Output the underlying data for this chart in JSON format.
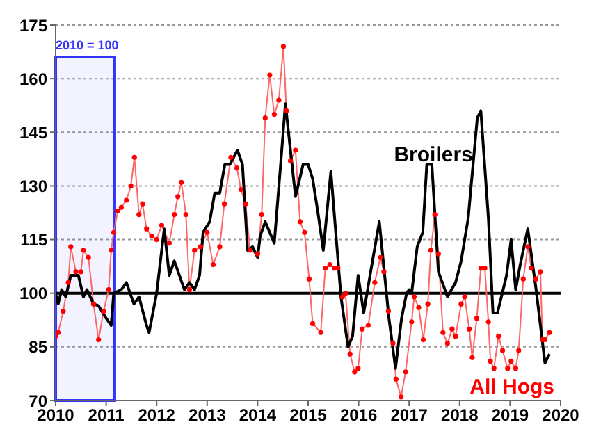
{
  "chart_data": {
    "type": "line",
    "bands": [
      {
        "axis": "x",
        "from": 2010,
        "to": 2011.17,
        "label": "2010 = 100",
        "color": "#3333ff"
      }
    ],
    "xlim": [
      2010,
      2020
    ],
    "xticks": [
      2010,
      2011,
      2012,
      2013,
      2014,
      2015,
      2016,
      2017,
      2018,
      2019,
      2020
    ],
    "ylim": [
      70,
      175
    ],
    "yticks": [
      70,
      85,
      100,
      115,
      130,
      145,
      160,
      175
    ],
    "grid": "y",
    "ref_lines": [
      {
        "axis": "y",
        "value": 100,
        "color": "#000000",
        "line_style": "solid"
      }
    ],
    "series": [
      {
        "name": "All Hogs",
        "color": "#ff6666",
        "marker": "circle",
        "x": [
          2010.0,
          2010.05,
          2010.15,
          2010.25,
          2010.3,
          2010.4,
          2010.5,
          2010.55,
          2010.65,
          2010.75,
          2010.85,
          2010.95,
          2011.05,
          2011.1,
          2011.15,
          2011.23,
          2011.3,
          2011.4,
          2011.49,
          2011.56,
          2011.65,
          2011.72,
          2011.8,
          2011.9,
          2012.0,
          2012.1,
          2012.25,
          2012.35,
          2012.42,
          2012.49,
          2012.58,
          2012.65,
          2012.75,
          2012.87,
          2013.0,
          2013.12,
          2013.25,
          2013.34,
          2013.47,
          2013.59,
          2013.67,
          2013.76,
          2013.85,
          2014.0,
          2014.08,
          2014.15,
          2014.24,
          2014.33,
          2014.42,
          2014.51,
          2014.57,
          2014.65,
          2014.75,
          2014.84,
          2014.93,
          2015.02,
          2015.09,
          2015.25,
          2015.34,
          2015.43,
          2015.52,
          2015.59,
          2015.68,
          2015.74,
          2015.83,
          2015.92,
          2015.99,
          2016.07,
          2016.19,
          2016.32,
          2016.43,
          2016.5,
          2016.59,
          2016.68,
          2016.74,
          2016.84,
          2016.93,
          2017.05,
          2017.1,
          2017.19,
          2017.28,
          2017.37,
          2017.43,
          2017.51,
          2017.58,
          2017.67,
          2017.76,
          2017.85,
          2017.92,
          2018.03,
          2018.1,
          2018.19,
          2018.25,
          2018.34,
          2018.42,
          2018.5,
          2018.57,
          2018.61,
          2018.68,
          2018.77,
          2018.85,
          2018.95,
          2019.02,
          2019.11,
          2019.17,
          2019.26,
          2019.35,
          2019.42,
          2019.51,
          2019.6,
          2019.64,
          2019.69,
          2019.78
        ],
        "values": [
          88,
          89,
          95,
          103,
          113,
          106,
          106,
          112,
          110,
          97,
          87,
          95,
          101,
          112,
          117,
          123,
          124,
          126,
          130,
          138,
          122,
          125,
          118,
          116,
          115,
          119,
          114,
          122,
          127,
          131,
          122,
          101,
          112,
          113,
          117,
          108,
          113,
          125,
          138,
          135,
          129,
          125,
          112,
          111,
          122,
          149,
          161,
          150,
          154,
          169,
          151,
          137,
          140,
          120,
          117,
          104,
          91.5,
          89,
          107,
          108,
          107,
          107,
          99,
          100,
          83,
          78,
          79,
          90,
          91,
          103,
          110,
          106,
          95,
          86,
          76,
          71,
          78,
          92,
          99,
          96,
          87,
          97,
          112,
          122,
          111,
          89,
          86,
          90,
          88,
          97,
          99,
          90,
          82,
          93,
          107,
          107,
          92,
          81,
          79,
          88,
          84,
          79,
          81,
          79,
          84,
          104,
          113,
          107,
          104,
          106,
          87,
          87,
          89
        ]
      },
      {
        "name": "Broilers",
        "color": "#000000",
        "marker": "none",
        "x": [
          2010.0,
          2010.05,
          2010.12,
          2010.2,
          2010.3,
          2010.45,
          2010.55,
          2010.62,
          2010.75,
          2010.85,
          2011.0,
          2011.1,
          2011.15,
          2011.3,
          2011.4,
          2011.55,
          2011.65,
          2011.8,
          2011.85,
          2012.0,
          2012.15,
          2012.25,
          2012.35,
          2012.55,
          2012.65,
          2012.75,
          2012.85,
          2012.92,
          2013.05,
          2013.15,
          2013.25,
          2013.35,
          2013.45,
          2013.6,
          2013.7,
          2013.8,
          2013.9,
          2014.0,
          2014.05,
          2014.15,
          2014.33,
          2014.45,
          2014.55,
          2014.65,
          2014.75,
          2014.9,
          2015.0,
          2015.09,
          2015.2,
          2015.3,
          2015.45,
          2015.65,
          2015.79,
          2015.88,
          2015.99,
          2016.1,
          2016.25,
          2016.41,
          2016.6,
          2016.73,
          2016.85,
          2016.95,
          2017.0,
          2017.05,
          2017.16,
          2017.27,
          2017.35,
          2017.45,
          2017.58,
          2017.76,
          2017.92,
          2018.03,
          2018.17,
          2018.35,
          2018.42,
          2018.57,
          2018.66,
          2018.75,
          2018.93,
          2019.02,
          2019.11,
          2019.2,
          2019.35,
          2019.51,
          2019.69,
          2019.78
        ],
        "values": [
          100,
          97,
          101,
          99,
          105,
          105,
          99,
          101,
          97,
          96.5,
          93,
          91,
          100,
          101,
          103,
          97,
          99,
          91,
          89,
          100,
          118,
          105,
          109,
          101,
          103,
          101,
          105,
          117,
          120,
          128,
          128,
          136,
          136,
          140,
          136,
          112,
          113,
          110,
          116,
          120,
          114,
          135,
          153,
          140,
          127,
          136,
          136,
          132,
          122,
          112,
          134,
          99,
          85,
          88,
          105,
          94.5,
          107,
          120,
          93,
          79,
          93,
          100,
          101,
          100,
          113,
          117,
          136,
          136,
          106,
          99,
          103,
          109,
          121,
          149,
          151,
          121,
          94.5,
          94.5,
          105,
          115,
          101,
          108,
          118,
          101.5,
          80.5,
          83
        ]
      }
    ]
  }
}
